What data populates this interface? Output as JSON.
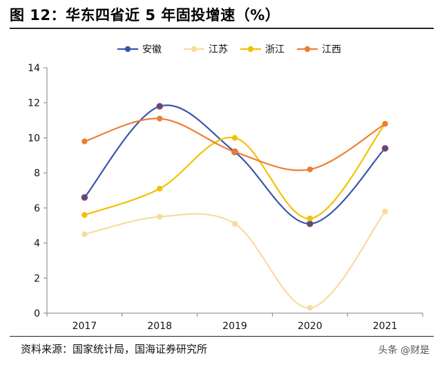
{
  "header": {
    "title": "图 12：华东四省近 5 年固投增速（%）"
  },
  "footer": {
    "source": "资料来源：国家统计局，国海证券研究所",
    "watermark": "头条 @财是"
  },
  "chart_data": {
    "type": "line",
    "title": "",
    "xlabel": "",
    "ylabel": "",
    "categories": [
      "2017",
      "2018",
      "2019",
      "2020",
      "2021"
    ],
    "ylim": [
      0,
      14
    ],
    "yticks": [
      0,
      2,
      4,
      6,
      8,
      10,
      12,
      14
    ],
    "grid": false,
    "smooth": true,
    "legend_position": "top",
    "series": [
      {
        "name": "安徽",
        "color": "#3a55a8",
        "values": [
          6.6,
          11.8,
          9.2,
          5.1,
          9.4
        ]
      },
      {
        "name": "江苏",
        "color": "#f7dc9c",
        "values": [
          4.5,
          5.5,
          5.1,
          0.3,
          5.8
        ]
      },
      {
        "name": "浙江",
        "color": "#f2c200",
        "values": [
          5.6,
          7.1,
          10.0,
          5.4,
          10.8
        ]
      },
      {
        "name": "江西",
        "color": "#ee7d31",
        "values": [
          9.8,
          11.1,
          9.2,
          8.2,
          10.8
        ]
      }
    ]
  }
}
